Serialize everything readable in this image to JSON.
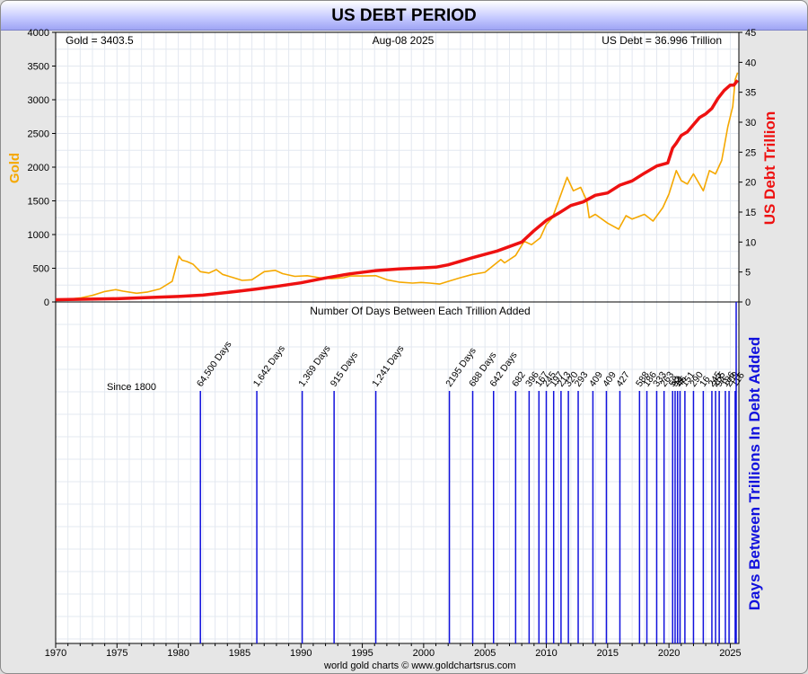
{
  "title": "US DEBT PERIOD",
  "footer": "world gold charts © www.goldchartsrus.com",
  "chart_data": [
    {
      "type": "line",
      "header": {
        "gold_readout": "Gold = 3403.5",
        "date": "Aug-08  2025",
        "debt_readout": "US Debt = 36.996 Trillion"
      },
      "xlim": [
        1970,
        2025.7
      ],
      "x_ticks": [
        1970,
        1975,
        1980,
        1985,
        1990,
        1995,
        2000,
        2005,
        2010,
        2015,
        2020,
        2025
      ],
      "y_left": {
        "label": "Gold",
        "ylim": [
          0,
          4000
        ],
        "ticks": [
          0,
          500,
          1000,
          1500,
          2000,
          2500,
          3000,
          3500,
          4000
        ]
      },
      "y_right": {
        "label": "US Debt Trillion",
        "ylim": [
          0,
          45
        ],
        "ticks": [
          0,
          5,
          10,
          15,
          20,
          25,
          30,
          35,
          40,
          45
        ]
      },
      "grid": true,
      "series": [
        {
          "name": "Gold",
          "color": "#f5a800",
          "axis": "left",
          "x": [
            1970,
            1971,
            1972,
            1973,
            1974,
            1974.9,
            1975.5,
            1976.6,
            1977.5,
            1978.5,
            1979.5,
            1980.05,
            1980.3,
            1980.7,
            1981.2,
            1981.8,
            1982.5,
            1983.1,
            1983.6,
            1984.5,
            1985.2,
            1986,
            1987,
            1987.9,
            1988.5,
            1989.5,
            1990.5,
            1991.5,
            1992.5,
            1993.5,
            1994,
            1995,
            1996.1,
            1997,
            1998,
            1999.1,
            1999.8,
            2000.5,
            2001.3,
            2002,
            2003,
            2004,
            2005,
            2006.3,
            2006.6,
            2007.5,
            2008.2,
            2008.8,
            2009.5,
            2010,
            2010.5,
            2011,
            2011.7,
            2012.2,
            2012.8,
            2013.3,
            2013.5,
            2014,
            2015,
            2015.9,
            2016.5,
            2017,
            2018,
            2018.7,
            2019.5,
            2020,
            2020.6,
            2021,
            2021.5,
            2022,
            2022.8,
            2023.3,
            2023.8,
            2024.3,
            2024.8,
            2025.2,
            2025.4,
            2025.6
          ],
          "y": [
            36,
            41,
            58,
            97,
            154,
            183,
            160,
            130,
            148,
            193,
            305,
            680,
            620,
            600,
            560,
            450,
            430,
            480,
            410,
            360,
            320,
            330,
            450,
            470,
            420,
            380,
            390,
            360,
            345,
            360,
            385,
            385,
            390,
            330,
            295,
            280,
            290,
            280,
            265,
            305,
            360,
            410,
            440,
            630,
            580,
            690,
            900,
            850,
            950,
            1150,
            1250,
            1500,
            1850,
            1650,
            1700,
            1500,
            1250,
            1300,
            1170,
            1080,
            1280,
            1230,
            1300,
            1200,
            1400,
            1600,
            1950,
            1800,
            1750,
            1900,
            1650,
            1950,
            1900,
            2100,
            2600,
            2900,
            3300,
            3403
          ]
        },
        {
          "name": "US Debt Trillion",
          "color": "#ee1111",
          "axis": "right",
          "x": [
            1970,
            1975,
            1980,
            1982,
            1985,
            1986.3,
            1988,
            1990,
            1992,
            1994,
            1996,
            1998,
            2000,
            2001,
            2002,
            2004,
            2006,
            2008,
            2009,
            2010,
            2011,
            2012,
            2013,
            2014,
            2015,
            2016,
            2017,
            2018,
            2019,
            2019.9,
            2020.3,
            2020.6,
            2021,
            2021.5,
            2022,
            2022.5,
            2023,
            2023.5,
            2024,
            2024.5,
            2025,
            2025.3,
            2025.6
          ],
          "y": [
            0.38,
            0.54,
            0.91,
            1.14,
            1.82,
            2.13,
            2.6,
            3.2,
            4.0,
            4.7,
            5.2,
            5.5,
            5.7,
            5.8,
            6.2,
            7.4,
            8.5,
            10.0,
            11.9,
            13.6,
            14.8,
            16.1,
            16.7,
            17.8,
            18.2,
            19.5,
            20.2,
            21.5,
            22.7,
            23.2,
            25.7,
            26.5,
            27.8,
            28.4,
            29.6,
            30.8,
            31.4,
            32.3,
            34.0,
            35.3,
            36.2,
            36.2,
            37.0
          ]
        }
      ]
    },
    {
      "type": "bar",
      "title": "Number Of Days Between Each Trillion Added",
      "ylabel": "Days Between Trillions In Debt Added",
      "annotation": "Since 1800",
      "color": "#1111dd",
      "x": [
        1981.8,
        1986.4,
        1990.1,
        1992.7,
        1996.1,
        2002.1,
        2004.0,
        2005.7,
        2007.5,
        2008.6,
        2009.4,
        2010.0,
        2010.6,
        2011.2,
        2011.8,
        2012.6,
        2013.8,
        2014.9,
        2016.0,
        2017.6,
        2018.2,
        2019.0,
        2019.6,
        2020.3,
        2020.5,
        2020.7,
        2020.9,
        2021.3,
        2022.0,
        2022.8,
        2023.5,
        2023.8,
        2024.1,
        2024.6,
        2024.9,
        2025.4
      ],
      "labels": [
        "64,500 Days",
        "1,642 Days",
        "1,369 Days",
        "915 Days",
        "1,241 Days",
        "2195 Days",
        "688 Days",
        "642 Days",
        "682",
        "396",
        "167",
        "245",
        "197",
        "213",
        "320",
        "293",
        "409",
        "409",
        "427",
        "588",
        "186",
        "333",
        "263",
        "58",
        "92",
        "14",
        "46",
        "151",
        "290",
        "16",
        "245",
        "255",
        "94",
        "186",
        "209",
        "116"
      ]
    }
  ]
}
